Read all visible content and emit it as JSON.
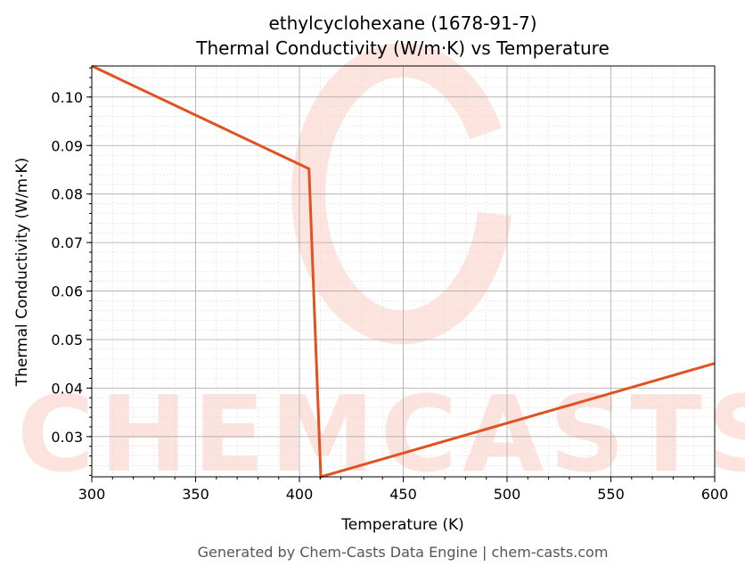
{
  "chart_data": {
    "type": "line",
    "title": "ethylcyclohexane (1678-91-7)",
    "subtitle": "Thermal Conductivity (W/m·K) vs Temperature",
    "xlabel": "Temperature (K)",
    "ylabel": "Thermal Conductivity (W/m·K)",
    "xlim": [
      300,
      600
    ],
    "ylim": [
      0.0217,
      0.1064
    ],
    "xticks": [
      300,
      350,
      400,
      450,
      500,
      550,
      600
    ],
    "yticks": [
      0.03,
      0.04,
      0.05,
      0.06,
      0.07,
      0.08,
      0.09,
      0.1
    ],
    "ytick_labels": [
      "0.03",
      "0.04",
      "0.05",
      "0.06",
      "0.07",
      "0.08",
      "0.09",
      "0.10"
    ],
    "grid": true,
    "series": [
      {
        "name": "Thermal Conductivity",
        "color": "#e0521f",
        "x": [
          300,
          404.6,
          410.3,
          600
        ],
        "y": [
          0.1064,
          0.0852,
          0.0217,
          0.0451
        ]
      }
    ]
  },
  "footer": "Generated by Chem-Casts Data Engine | chem-casts.com",
  "watermark": "CHEMCASTS"
}
